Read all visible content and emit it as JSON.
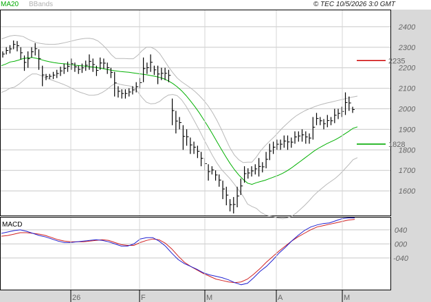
{
  "header": {
    "legend": [
      {
        "label": "MA20",
        "color": "#00aa00"
      },
      {
        "label": "BBands",
        "color": "#b0b0b0"
      }
    ],
    "copyright": "© TEC 10/5/2026 3:0 GMT"
  },
  "macd_panel": {
    "title": "MACD"
  },
  "colors": {
    "price": "#000000",
    "ma": "#00b000",
    "bbands": "#b8b8b8",
    "resistance": "#cc0000",
    "support": "#00aa00",
    "macd": "#2020d0",
    "signal": "#d02020",
    "grid": "#c8c8c8"
  },
  "chart_data": [
    {
      "type": "line",
      "subtype": "ohlc-bars",
      "ylim": [
        1480,
        2480
      ],
      "yticks": [
        1600,
        1700,
        1800,
        1900,
        2000,
        2100,
        2200,
        2300,
        2400
      ],
      "ytick_labels": [
        "1600",
        "1700",
        "1800",
        "1900",
        "2000",
        "2100",
        "2200",
        "2300",
        "2400"
      ],
      "xticks": [
        "26",
        "F",
        "M",
        "A",
        "M"
      ],
      "levels": [
        {
          "name": "resistance",
          "value": 2235,
          "label": "2235"
        },
        {
          "name": "support",
          "value": 1828,
          "label": "1828"
        }
      ],
      "series": [
        {
          "name": "MA20",
          "values": [
            2210,
            2218,
            2228,
            2232,
            2238,
            2245,
            2248,
            2250,
            2246,
            2240,
            2234,
            2229,
            2225,
            2222,
            2220,
            2218,
            2215,
            2212,
            2210,
            2208,
            2205,
            2203,
            2200,
            2196,
            2192,
            2188,
            2185,
            2182,
            2180,
            2178,
            2175,
            2172,
            2169,
            2166,
            2162,
            2158,
            2153,
            2146,
            2136,
            2123,
            2107,
            2088,
            2065,
            2039,
            2011,
            1981,
            1948,
            1914,
            1878,
            1841,
            1804,
            1769,
            1735,
            1704,
            1678,
            1656,
            1638,
            1632,
            1640,
            1646,
            1652,
            1660,
            1668,
            1676,
            1686,
            1698,
            1712,
            1728,
            1744,
            1760,
            1776,
            1792,
            1806,
            1818,
            1830,
            1840,
            1850,
            1862,
            1876,
            1890,
            1905,
            1912
          ]
        },
        {
          "name": "BBand-upper",
          "values": [
            2340,
            2348,
            2355,
            2358,
            2356,
            2352,
            2340,
            2330,
            2322,
            2318,
            2315,
            2314,
            2314,
            2316,
            2320,
            2325,
            2330,
            2336,
            2340,
            2343,
            2344,
            2340,
            2330,
            2312,
            2290,
            2264,
            2245,
            2245,
            2245,
            2244,
            2244,
            2260,
            2283,
            2300,
            2300,
            2290,
            2270,
            2238,
            2205,
            2176,
            2150,
            2132,
            2117,
            2102,
            2085,
            2065,
            2042,
            2015,
            1983,
            1945,
            1902,
            1855,
            1810,
            1775,
            1752,
            1738,
            1740,
            1740,
            1765,
            1796,
            1820,
            1842,
            1862,
            1885,
            1908,
            1928,
            1948,
            1965,
            1978,
            1990,
            2000,
            2008,
            2016,
            2022,
            2028,
            2033,
            2038,
            2043,
            2048,
            2053,
            2058,
            2062
          ]
        },
        {
          "name": "BBand-lower",
          "values": [
            2080,
            2088,
            2101,
            2106,
            2120,
            2138,
            2156,
            2170,
            2170,
            2162,
            2153,
            2144,
            2136,
            2128,
            2120,
            2111,
            2100,
            2088,
            2080,
            2073,
            2066,
            2066,
            2070,
            2080,
            2094,
            2112,
            2125,
            2119,
            2115,
            2112,
            2106,
            2084,
            2055,
            2032,
            2024,
            2026,
            2036,
            2054,
            2067,
            2070,
            2064,
            2044,
            2013,
            1976,
            1937,
            1897,
            1854,
            1813,
            1773,
            1737,
            1706,
            1683,
            1660,
            1633,
            1604,
            1574,
            1536,
            1524,
            1515,
            1496,
            1484,
            1478,
            1474,
            1467,
            1464,
            1468,
            1476,
            1491,
            1510,
            1530,
            1552,
            1576,
            1596,
            1614,
            1632,
            1647,
            1662,
            1681,
            1704,
            1727,
            1752,
            1762
          ]
        }
      ],
      "ohlc": [
        {
          "h": 2280,
          "l": 2250
        },
        {
          "h": 2300,
          "l": 2265
        },
        {
          "h": 2310,
          "l": 2270
        },
        {
          "h": 2333,
          "l": 2290
        },
        {
          "h": 2330,
          "l": 2280
        },
        {
          "h": 2300,
          "l": 2240
        },
        {
          "h": 2260,
          "l": 2185
        },
        {
          "h": 2280,
          "l": 2200
        },
        {
          "h": 2300,
          "l": 2250
        },
        {
          "h": 2320,
          "l": 2260
        },
        {
          "h": 2290,
          "l": 2190
        },
        {
          "h": 2210,
          "l": 2110
        },
        {
          "h": 2170,
          "l": 2140
        },
        {
          "h": 2170,
          "l": 2145
        },
        {
          "h": 2180,
          "l": 2145
        },
        {
          "h": 2190,
          "l": 2150
        },
        {
          "h": 2205,
          "l": 2160
        },
        {
          "h": 2220,
          "l": 2170
        },
        {
          "h": 2230,
          "l": 2180
        },
        {
          "h": 2245,
          "l": 2190
        },
        {
          "h": 2225,
          "l": 2180
        },
        {
          "h": 2210,
          "l": 2170
        },
        {
          "h": 2220,
          "l": 2175
        },
        {
          "h": 2235,
          "l": 2185
        },
        {
          "h": 2265,
          "l": 2190
        },
        {
          "h": 2245,
          "l": 2180
        },
        {
          "h": 2210,
          "l": 2160
        },
        {
          "h": 2250,
          "l": 2190
        },
        {
          "h": 2245,
          "l": 2195
        },
        {
          "h": 2225,
          "l": 2170
        },
        {
          "h": 2200,
          "l": 2150
        },
        {
          "h": 2180,
          "l": 2060
        },
        {
          "h": 2110,
          "l": 2055
        },
        {
          "h": 2095,
          "l": 2050
        },
        {
          "h": 2095,
          "l": 2050
        },
        {
          "h": 2100,
          "l": 2060
        },
        {
          "h": 2110,
          "l": 2070
        },
        {
          "h": 2130,
          "l": 2080
        },
        {
          "h": 2150,
          "l": 2100
        },
        {
          "h": 2250,
          "l": 2130
        },
        {
          "h": 2225,
          "l": 2170
        },
        {
          "h": 2265,
          "l": 2180
        },
        {
          "h": 2210,
          "l": 2165
        },
        {
          "h": 2210,
          "l": 2120
        },
        {
          "h": 2200,
          "l": 2140
        },
        {
          "h": 2200,
          "l": 2140
        },
        {
          "h": 2190,
          "l": 2130
        },
        {
          "h": 2050,
          "l": 1920
        },
        {
          "h": 1990,
          "l": 1880
        },
        {
          "h": 1960,
          "l": 1900
        },
        {
          "h": 1920,
          "l": 1800
        },
        {
          "h": 1900,
          "l": 1820
        },
        {
          "h": 1860,
          "l": 1780
        },
        {
          "h": 1840,
          "l": 1780
        },
        {
          "h": 1820,
          "l": 1760
        },
        {
          "h": 1790,
          "l": 1720
        },
        {
          "h": 1760,
          "l": 1700
        },
        {
          "h": 1730,
          "l": 1650
        },
        {
          "h": 1720,
          "l": 1680
        },
        {
          "h": 1700,
          "l": 1650
        },
        {
          "h": 1680,
          "l": 1620
        },
        {
          "h": 1650,
          "l": 1560
        },
        {
          "h": 1620,
          "l": 1530
        },
        {
          "h": 1560,
          "l": 1500
        },
        {
          "h": 1570,
          "l": 1490
        },
        {
          "h": 1620,
          "l": 1520
        },
        {
          "h": 1660,
          "l": 1580
        },
        {
          "h": 1720,
          "l": 1640
        },
        {
          "h": 1710,
          "l": 1660
        },
        {
          "h": 1720,
          "l": 1670
        },
        {
          "h": 1730,
          "l": 1680
        },
        {
          "h": 1760,
          "l": 1670
        },
        {
          "h": 1740,
          "l": 1690
        },
        {
          "h": 1790,
          "l": 1710
        },
        {
          "h": 1830,
          "l": 1750
        },
        {
          "h": 1840,
          "l": 1780
        },
        {
          "h": 1850,
          "l": 1800
        },
        {
          "h": 1850,
          "l": 1800
        },
        {
          "h": 1870,
          "l": 1810
        },
        {
          "h": 1870,
          "l": 1800
        },
        {
          "h": 1860,
          "l": 1810
        },
        {
          "h": 1890,
          "l": 1830
        },
        {
          "h": 1890,
          "l": 1840
        },
        {
          "h": 1900,
          "l": 1840
        },
        {
          "h": 1890,
          "l": 1830
        },
        {
          "h": 1880,
          "l": 1830
        },
        {
          "h": 1960,
          "l": 1850
        },
        {
          "h": 1980,
          "l": 1920
        },
        {
          "h": 1960,
          "l": 1920
        },
        {
          "h": 1950,
          "l": 1900
        },
        {
          "h": 1970,
          "l": 1910
        },
        {
          "h": 1960,
          "l": 1920
        },
        {
          "h": 2000,
          "l": 1930
        },
        {
          "h": 2000,
          "l": 1950
        },
        {
          "h": 2010,
          "l": 1960
        },
        {
          "h": 2080,
          "l": 1970
        },
        {
          "h": 2060,
          "l": 1990
        },
        {
          "h": 2010,
          "l": 1980
        }
      ]
    },
    {
      "type": "line",
      "title": "MACD",
      "ylim": [
        -130,
        75
      ],
      "yticks": [
        40,
        0,
        -40
      ],
      "ytick_labels": [
        "040",
        "000",
        "-040"
      ],
      "series": [
        {
          "name": "MACD",
          "values": [
            30,
            34,
            38,
            40,
            36,
            30,
            24,
            20,
            14,
            8,
            4,
            4,
            6,
            8,
            10,
            12,
            10,
            6,
            0,
            -6,
            -6,
            0,
            14,
            18,
            18,
            8,
            -6,
            -26,
            -44,
            -56,
            -64,
            -72,
            -82,
            -88,
            -92,
            -96,
            -102,
            -110,
            -116,
            -112,
            -96,
            -78,
            -64,
            -46,
            -26,
            -10,
            8,
            24,
            38,
            48,
            54,
            58,
            60,
            66,
            72,
            74,
            74
          ]
        },
        {
          "name": "Signal",
          "values": [
            22,
            24,
            28,
            32,
            32,
            30,
            28,
            24,
            18,
            12,
            8,
            6,
            6,
            6,
            8,
            10,
            12,
            10,
            4,
            -2,
            -4,
            -4,
            4,
            10,
            14,
            12,
            2,
            -14,
            -34,
            -52,
            -64,
            -74,
            -84,
            -92,
            -100,
            -104,
            -108,
            -110,
            -108,
            -100,
            -86,
            -70,
            -52,
            -36,
            -20,
            -6,
            8,
            20,
            30,
            40,
            48,
            52,
            56,
            60,
            64,
            68,
            70
          ]
        }
      ]
    }
  ]
}
